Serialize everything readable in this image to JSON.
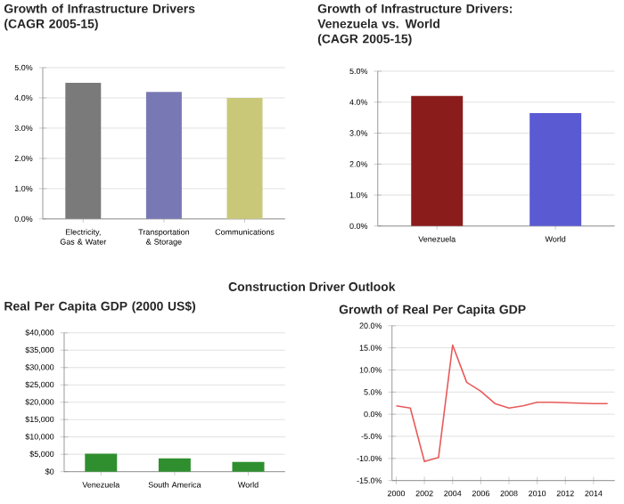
{
  "chart_data": [
    {
      "type": "bar",
      "title": "Growth of Infrastructure Drivers",
      "subtitle": "(CAGR 2005-15)",
      "categories": [
        "Electricity, Gas & Water",
        "Transportation & Storage",
        "Communications"
      ],
      "values": [
        4.5,
        4.2,
        4.0
      ],
      "colors": [
        "#7a7a7a",
        "#7878b4",
        "#c8c878"
      ],
      "ylim": [
        0,
        5
      ],
      "yticks": [
        {
          "value": 0,
          "label": "0.0%"
        },
        {
          "value": 1,
          "label": "1.0%"
        },
        {
          "value": 2,
          "label": "2.0%"
        },
        {
          "value": 3,
          "label": "3.0%"
        },
        {
          "value": 4,
          "label": "4.0%"
        },
        {
          "value": 5,
          "label": "5.0%"
        }
      ],
      "grid": "y"
    },
    {
      "type": "bar",
      "title": "Growth of Infrastructure Drivers: Venezuela vs. World",
      "subtitle": "(CAGR 2005-15)",
      "categories": [
        "Venezuela",
        "World"
      ],
      "values": [
        4.2,
        3.65
      ],
      "colors": [
        "#8b1c1c",
        "#5a5ad2"
      ],
      "ylim": [
        0,
        5
      ],
      "yticks": [
        {
          "value": 0,
          "label": "0.0%"
        },
        {
          "value": 1,
          "label": "1.0%"
        },
        {
          "value": 2,
          "label": "2.0%"
        },
        {
          "value": 3,
          "label": "3.0%"
        },
        {
          "value": 4,
          "label": "4.0%"
        },
        {
          "value": 5,
          "label": "5.0%"
        }
      ],
      "grid": "y"
    },
    {
      "type": "bar",
      "title": "Real Per Capita GDP (2000 US$)",
      "annotations": [
        "Construction Driver Outlook"
      ],
      "categories": [
        "Venezuela",
        "South America",
        "World"
      ],
      "values": [
        5200,
        3800,
        2800
      ],
      "colors": [
        "#2f8f2f",
        "#2f8f2f",
        "#2f8f2f"
      ],
      "ylim": [
        0,
        40000
      ],
      "yticks": [
        {
          "value": 0,
          "label": "$0"
        },
        {
          "value": 5000,
          "label": "$5,000"
        },
        {
          "value": 10000,
          "label": "$10,000"
        },
        {
          "value": 15000,
          "label": "$15,000"
        },
        {
          "value": 20000,
          "label": "$20,000"
        },
        {
          "value": 25000,
          "label": "$25,000"
        },
        {
          "value": 30000,
          "label": "$30,000"
        },
        {
          "value": 35000,
          "label": "$35,000"
        },
        {
          "value": 40000,
          "label": "$40,000"
        }
      ],
      "grid": "y"
    },
    {
      "type": "line",
      "title": "Growth of Real Per Capita GDP",
      "color": "#e85a5a",
      "x": [
        2000,
        2001,
        2002,
        2003,
        2004,
        2005,
        2006,
        2007,
        2008,
        2009,
        2010,
        2011,
        2012,
        2013,
        2014,
        2015
      ],
      "values": [
        1.9,
        1.4,
        -10.7,
        -9.8,
        15.6,
        7.2,
        5.2,
        2.4,
        1.4,
        1.9,
        2.7,
        2.7,
        2.6,
        2.5,
        2.4,
        2.4
      ],
      "xlim": [
        1999.7,
        2015.5
      ],
      "xticks": [
        2000,
        2002,
        2004,
        2006,
        2008,
        2010,
        2012,
        2014
      ],
      "ylim": [
        -15,
        20
      ],
      "yticks": [
        {
          "value": -15,
          "label": "-15.0%"
        },
        {
          "value": -10,
          "label": "-10.0%"
        },
        {
          "value": -5,
          "label": "-5.0%"
        },
        {
          "value": 0,
          "label": "0.0%"
        },
        {
          "value": 5,
          "label": "5.0%"
        },
        {
          "value": 10,
          "label": "10.0%"
        },
        {
          "value": 15,
          "label": "15.0%"
        },
        {
          "value": 20,
          "label": "20.0%"
        }
      ],
      "grid": "y"
    }
  ]
}
